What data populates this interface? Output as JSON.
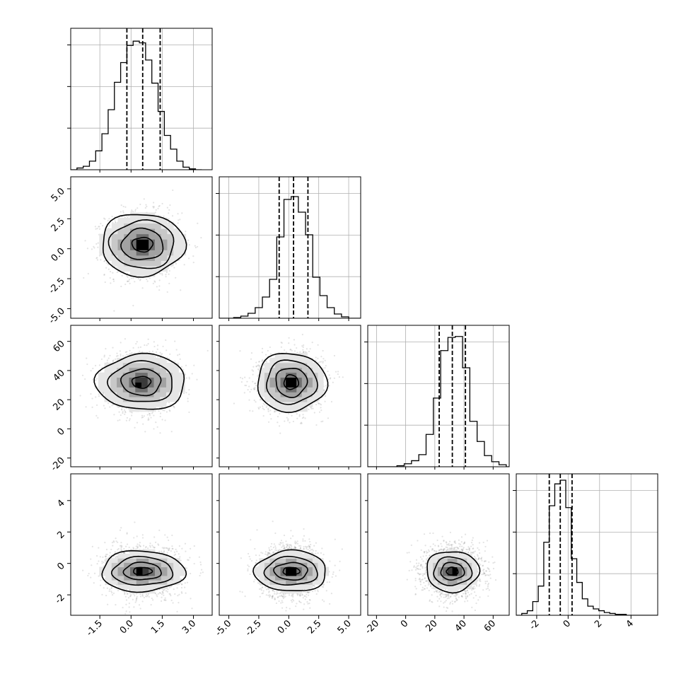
{
  "chart_data": {
    "type": "corner",
    "parameters": [
      {
        "index": 0,
        "label": "",
        "range": [
          -2.9,
          3.9
        ],
        "ticks": [
          "-1.5",
          "0.0",
          "1.5",
          "3.0"
        ],
        "tick_values": [
          -1.5,
          0.0,
          1.5,
          3.0
        ],
        "mean": 0.6,
        "sigma": 0.8,
        "quantiles": [
          -0.2,
          0.56,
          1.4
        ]
      },
      {
        "index": 1,
        "label": "",
        "range": [
          -5.8,
          6.0
        ],
        "ticks": [
          "-5.0",
          "-2.5",
          "0.0",
          "2.5",
          "5.0"
        ],
        "tick_values": [
          -5.0,
          -2.5,
          0.0,
          2.5,
          5.0
        ],
        "mean": 0.4,
        "sigma": 1.2,
        "quantiles": [
          -0.8,
          0.4,
          1.6
        ]
      },
      {
        "index": 2,
        "label": "",
        "range": [
          -26,
          71
        ],
        "ticks": [
          "-20",
          "0",
          "20",
          "40",
          "60"
        ],
        "tick_values": [
          -20,
          0,
          20,
          40,
          60
        ],
        "mean": 32,
        "sigma": 9,
        "quantiles": [
          23,
          32,
          41
        ]
      },
      {
        "index": 3,
        "label": "",
        "range": [
          -3.3,
          5.7
        ],
        "ticks": [
          "-2",
          "0",
          "2",
          "4"
        ],
        "tick_values": [
          -2,
          0,
          2,
          4
        ],
        "mean": -0.5,
        "sigma": 0.75,
        "quantiles": [
          -1.2,
          -0.5,
          0.25
        ]
      }
    ],
    "histograms": [
      {
        "param": 0,
        "bins": [
          -2.9,
          -2.6,
          -2.3,
          -2.0,
          -1.7,
          -1.4,
          -1.1,
          -0.8,
          -0.5,
          -0.2,
          0.1,
          0.4,
          0.7,
          1.0,
          1.3,
          1.6,
          1.9,
          2.2,
          2.5,
          2.8,
          3.1,
          3.4
        ],
        "counts": [
          0,
          2,
          4,
          10,
          22,
          42,
          70,
          102,
          125,
          145,
          150,
          148,
          128,
          101,
          68,
          40,
          24,
          10,
          3,
          1,
          0
        ],
        "ylim": [
          0,
          165
        ]
      },
      {
        "param": 1,
        "bins": [
          -5.8,
          -5.2,
          -4.6,
          -4.0,
          -3.4,
          -2.8,
          -2.2,
          -1.6,
          -1.0,
          -0.4,
          0.2,
          0.8,
          1.4,
          2.0,
          2.6,
          3.2,
          3.8,
          4.4,
          5.0,
          5.6,
          6.0
        ],
        "counts": [
          0,
          0,
          1,
          3,
          7,
          15,
          30,
          55,
          115,
          168,
          172,
          150,
          118,
          58,
          32,
          15,
          6,
          2,
          0,
          0
        ],
        "ylim": [
          0,
          200
        ]
      },
      {
        "param": 2,
        "bins": [
          -26,
          -21,
          -16,
          -11,
          -6,
          -1,
          4,
          9,
          14,
          19,
          24,
          29,
          34,
          39,
          44,
          49,
          54,
          59,
          64,
          69,
          71
        ],
        "counts": [
          0,
          0,
          0,
          0,
          1,
          3,
          6,
          12,
          32,
          68,
          115,
          128,
          129,
          98,
          45,
          25,
          11,
          5,
          2,
          0
        ],
        "ylim": [
          0,
          140
        ]
      },
      {
        "param": 3,
        "bins": [
          -3.3,
          -2.95,
          -2.6,
          -2.25,
          -1.9,
          -1.55,
          -1.2,
          -0.85,
          -0.5,
          -0.15,
          0.2,
          0.55,
          0.9,
          1.25,
          1.6,
          1.95,
          2.3,
          2.65,
          3.0,
          3.35,
          3.7,
          4.05,
          4.4,
          4.75,
          5.1,
          5.45,
          5.7
        ],
        "counts": [
          0,
          2,
          5,
          15,
          32,
          80,
          120,
          144,
          148,
          118,
          62,
          36,
          18,
          10,
          7,
          5,
          3,
          2,
          1,
          1,
          0,
          0,
          0,
          0,
          0,
          0
        ],
        "ylim": [
          0,
          155
        ]
      }
    ],
    "pairs": [
      {
        "x_param": 0,
        "y_param": 1,
        "center": [
          0.55,
          0.35
        ],
        "contour_radii": [
          [
            0.5,
            0.6
          ],
          [
            1.0,
            1.3
          ],
          [
            1.55,
            2.0
          ],
          [
            2.0,
            2.6
          ]
        ],
        "peak": [
          0.55,
          0.25
        ]
      },
      {
        "x_param": 0,
        "y_param": 2,
        "center": [
          0.5,
          32
        ],
        "contour_radii": [
          [
            0.45,
            4
          ],
          [
            0.95,
            9
          ],
          [
            1.55,
            14
          ],
          [
            2.15,
            19
          ]
        ],
        "peak": [
          0.35,
          30
        ]
      },
      {
        "x_param": 1,
        "y_param": 2,
        "center": [
          0.2,
          32
        ],
        "contour_radii": [
          [
            0.6,
            5
          ],
          [
            1.3,
            10
          ],
          [
            2.1,
            15
          ],
          [
            2.9,
            20
          ]
        ],
        "peak": [
          0.2,
          32
        ]
      },
      {
        "x_param": 0,
        "y_param": 3,
        "center": [
          0.55,
          -0.5
        ],
        "contour_radii": [
          [
            0.45,
            0.25
          ],
          [
            0.9,
            0.55
          ],
          [
            1.45,
            0.9
          ],
          [
            2.0,
            1.3
          ]
        ],
        "peak": [
          0.35,
          -0.45
        ]
      },
      {
        "x_param": 1,
        "y_param": 3,
        "center": [
          0.2,
          -0.5
        ],
        "contour_radii": [
          [
            0.7,
            0.25
          ],
          [
            1.4,
            0.55
          ],
          [
            2.2,
            0.9
          ],
          [
            3.0,
            1.3
          ]
        ],
        "peak": [
          0.2,
          -0.5
        ]
      },
      {
        "x_param": 2,
        "y_param": 3,
        "center": [
          32,
          -0.5
        ],
        "contour_radii": [
          [
            4,
            0.25
          ],
          [
            8,
            0.55
          ],
          [
            13,
            0.9
          ],
          [
            18,
            1.3
          ]
        ],
        "peak": [
          34,
          -0.45
        ]
      }
    ],
    "grid": true,
    "colors": {
      "marks": "#000000",
      "points": "#808080",
      "grid": "#b0b0b0"
    }
  }
}
